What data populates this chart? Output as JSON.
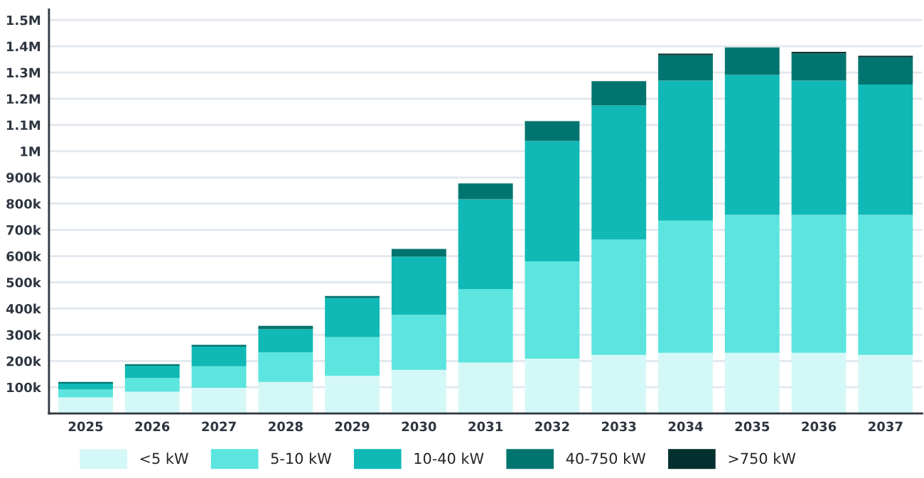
{
  "chart_data": {
    "type": "bar",
    "stacked": true,
    "categories": [
      "2025",
      "2026",
      "2027",
      "2028",
      "2029",
      "2030",
      "2031",
      "2032",
      "2033",
      "2034",
      "2035",
      "2036",
      "2037"
    ],
    "series": [
      {
        "name": "<5 kW",
        "color": "#d4f8f7",
        "values": [
          61000,
          83000,
          98000,
          120000,
          144000,
          166000,
          194000,
          209000,
          223000,
          231000,
          231000,
          231000,
          223000
        ]
      },
      {
        "name": "5-10 kW",
        "color": "#5ce5df",
        "values": [
          30000,
          52000,
          82000,
          113000,
          147000,
          210000,
          280000,
          371000,
          440000,
          504000,
          526000,
          526000,
          534000
        ]
      },
      {
        "name": "10-40 kW",
        "color": "#10b9b6",
        "values": [
          23000,
          47000,
          75000,
          88000,
          149000,
          222000,
          343000,
          459000,
          511000,
          534000,
          534000,
          512000,
          497000
        ]
      },
      {
        "name": "40-750 kW",
        "color": "#00756f",
        "values": [
          6000,
          6000,
          7000,
          13000,
          8000,
          29000,
          60000,
          76000,
          93000,
          97000,
          105000,
          103000,
          104000
        ]
      },
      {
        "name": ">750 kW",
        "color": "#01302e",
        "values": [
          0,
          0,
          0,
          0,
          0,
          0,
          0,
          0,
          0,
          6000,
          0,
          7000,
          6000
        ]
      }
    ],
    "ylim": [
      0,
      1540000
    ],
    "yticks": [
      {
        "value": 100000,
        "label": "100k"
      },
      {
        "value": 200000,
        "label": "200k"
      },
      {
        "value": 300000,
        "label": "300k"
      },
      {
        "value": 400000,
        "label": "400k"
      },
      {
        "value": 500000,
        "label": "500k"
      },
      {
        "value": 600000,
        "label": "600k"
      },
      {
        "value": 700000,
        "label": "700k"
      },
      {
        "value": 800000,
        "label": "800k"
      },
      {
        "value": 900000,
        "label": "900k"
      },
      {
        "value": 1000000,
        "label": "1M"
      },
      {
        "value": 1100000,
        "label": "1.1M"
      },
      {
        "value": 1200000,
        "label": "1.2M"
      },
      {
        "value": 1300000,
        "label": "1.3M"
      },
      {
        "value": 1400000,
        "label": "1.4M"
      },
      {
        "value": 1500000,
        "label": "1.5M"
      }
    ],
    "grid": "y",
    "legend": "bottom"
  }
}
